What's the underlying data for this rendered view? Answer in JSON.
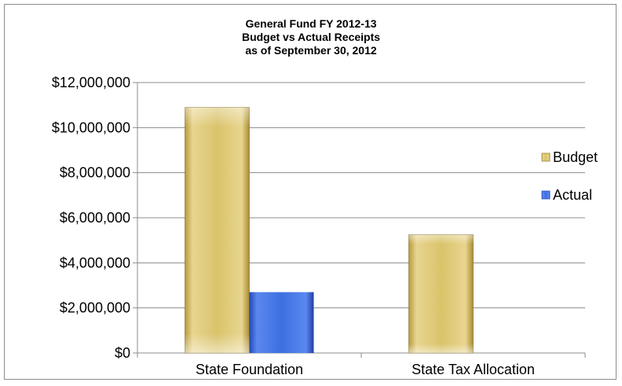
{
  "chart_data": {
    "type": "bar",
    "title_lines": [
      "General Fund FY 2012-13",
      "Budget vs Actual Receipts",
      "as of September 30, 2012"
    ],
    "categories": [
      "State Foundation",
      "State Tax Allocation"
    ],
    "series": [
      {
        "name": "Budget",
        "values": [
          10900000,
          5250000
        ],
        "color": "#d9c36a"
      },
      {
        "name": "Actual",
        "values": [
          2700000,
          null
        ],
        "color": "#3d6fe0"
      }
    ],
    "yticks": [
      "$0",
      "$2,000,000",
      "$4,000,000",
      "$6,000,000",
      "$8,000,000",
      "$10,000,000",
      "$12,000,000"
    ],
    "ylim": [
      0,
      12000000
    ],
    "grid": true,
    "legend_position": "right"
  }
}
